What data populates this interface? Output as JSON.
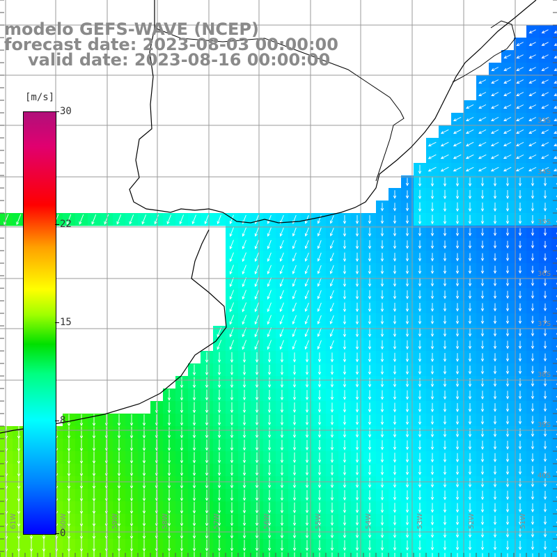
{
  "title": {
    "line1": "modelo GEFS-WAVE (NCEP)",
    "line2": "forecast date: 2023-08-03 00:00:00",
    "line3": "valid date: 2023-08-16 00:00:00"
  },
  "colorbar": {
    "unit": "[m/s]",
    "labels": [
      {
        "text": "30",
        "value": 30
      },
      {
        "text": "22",
        "value": 22
      },
      {
        "text": "15",
        "value": 15
      },
      {
        "text": "8",
        "value": 8
      },
      {
        "text": "0",
        "value": 0
      }
    ],
    "min": 0,
    "max": 30
  },
  "lat_labels": [
    "33S",
    "34S",
    "35S",
    "36S",
    "37S",
    "38S",
    "39S",
    "40S"
  ],
  "lon_labels": [
    "61W",
    "60W",
    "59W",
    "58W",
    "57W",
    "56W",
    "55W",
    "54W",
    "53W",
    "52W",
    "51W"
  ],
  "colors": {
    "background": "#ffffff",
    "grid": "#9a9a9a",
    "coast": "#000000",
    "arrow": "#ffffff",
    "title": "#8a8a8a"
  }
}
